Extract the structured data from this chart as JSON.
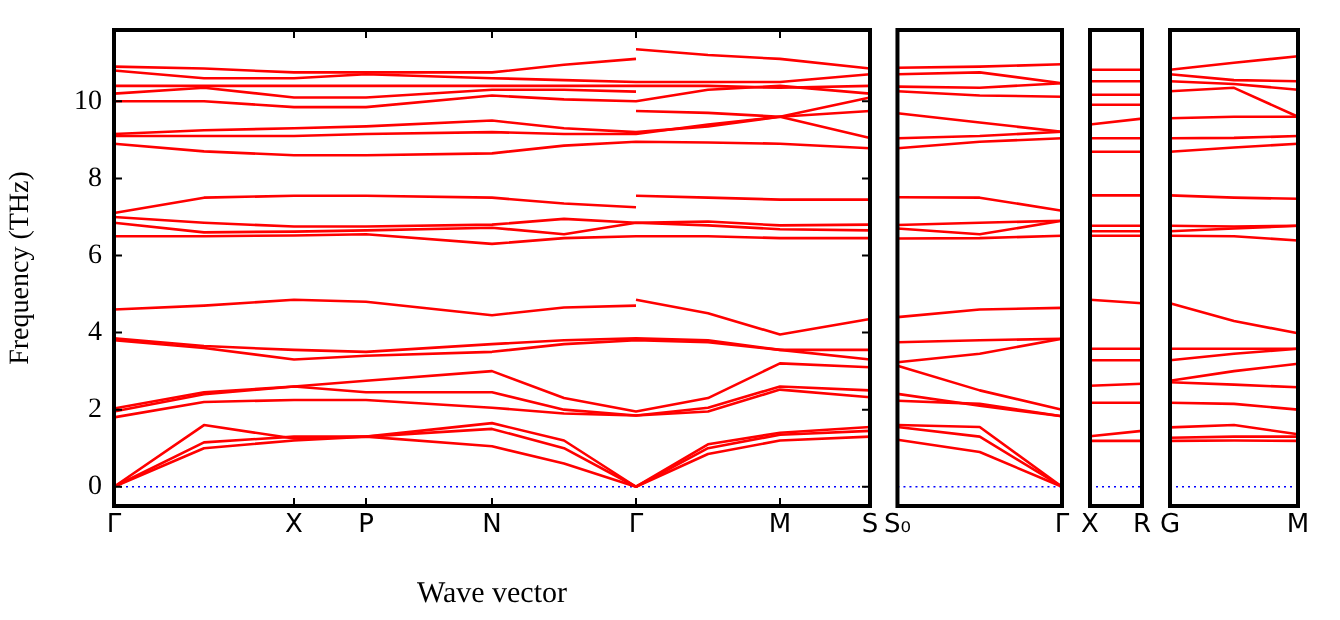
{
  "chart_data": [
    {
      "type": "line",
      "xlabel": "Wave vector",
      "ylabel": "Frequency (THz)",
      "marker": "none",
      "categories": [
        "Γ",
        null,
        null,
        null,
        null,
        null,
        null,
        null,
        null,
        null,
        "X",
        null,
        null,
        null,
        "P",
        null,
        null,
        null,
        null,
        null,
        null,
        "N",
        null,
        null,
        null,
        null,
        null,
        null,
        null,
        "Γ",
        null,
        null,
        null,
        null,
        null,
        null,
        null,
        "M",
        null,
        null,
        null,
        null,
        "S"
      ],
      "ylim": [
        -0.5,
        11.85
      ],
      "yticks": [
        0,
        2,
        4,
        6,
        8,
        10
      ],
      "ref_lines": [
        {
          "axis": "y",
          "value": 0,
          "color": "#0000ff",
          "line_style": "dotted"
        }
      ],
      "series": [
        {
          "color": "#ff0000",
          "values": [
            0,
            null,
            null,
            null,
            null,
            1.0,
            null,
            null,
            null,
            null,
            1.2,
            null,
            null,
            null,
            1.3,
            null,
            null,
            null,
            null,
            null,
            null,
            1.05,
            null,
            null,
            null,
            0.6,
            null,
            null,
            null,
            0,
            null,
            null,
            null,
            0.85,
            null,
            null,
            null,
            1.2,
            null,
            null,
            null,
            null,
            1.3
          ]
        },
        {
          "color": "#ff0000",
          "values": [
            0,
            null,
            null,
            null,
            null,
            1.15,
            null,
            null,
            null,
            null,
            1.3,
            null,
            null,
            null,
            1.3,
            null,
            null,
            null,
            null,
            null,
            null,
            1.5,
            null,
            null,
            null,
            1.0,
            null,
            null,
            null,
            0,
            null,
            null,
            null,
            1.0,
            null,
            null,
            null,
            1.35,
            null,
            null,
            null,
            null,
            1.45
          ]
        },
        {
          "color": "#ff0000",
          "values": [
            0,
            null,
            null,
            null,
            null,
            1.6,
            null,
            null,
            null,
            null,
            1.25,
            null,
            null,
            null,
            1.3,
            null,
            null,
            null,
            null,
            null,
            null,
            1.65,
            null,
            null,
            null,
            1.2,
            null,
            null,
            null,
            0,
            null,
            null,
            null,
            1.1,
            null,
            null,
            null,
            1.4,
            null,
            null,
            null,
            null,
            1.55
          ]
        },
        {
          "color": "#ff0000",
          "values": [
            1.8,
            null,
            null,
            null,
            null,
            2.2,
            null,
            null,
            null,
            null,
            2.25,
            null,
            null,
            null,
            2.25,
            null,
            null,
            null,
            null,
            null,
            null,
            2.05,
            null,
            null,
            null,
            1.9,
            null,
            null,
            null,
            1.85,
            null,
            null,
            null,
            1.95,
            null,
            null,
            null,
            2.52,
            null,
            null,
            null,
            null,
            2.32
          ]
        },
        {
          "color": "#ff0000",
          "values": [
            1.95,
            null,
            null,
            null,
            null,
            2.4,
            null,
            null,
            null,
            null,
            2.6,
            null,
            null,
            null,
            2.45,
            null,
            null,
            null,
            null,
            null,
            null,
            2.45,
            null,
            null,
            null,
            2.0,
            null,
            null,
            null,
            1.85,
            null,
            null,
            null,
            2.05,
            null,
            null,
            null,
            2.6,
            null,
            null,
            null,
            null,
            2.5
          ]
        },
        {
          "color": "#ff0000",
          "values": [
            2.03,
            null,
            null,
            null,
            null,
            2.45,
            null,
            null,
            null,
            null,
            2.6,
            null,
            null,
            null,
            2.75,
            null,
            null,
            null,
            null,
            null,
            null,
            3.0,
            null,
            null,
            null,
            2.3,
            null,
            null,
            null,
            1.95,
            null,
            null,
            null,
            2.3,
            null,
            null,
            null,
            3.2,
            null,
            null,
            null,
            null,
            3.1
          ]
        },
        {
          "color": "#ff0000",
          "values": [
            3.8,
            null,
            null,
            null,
            null,
            3.6,
            null,
            null,
            null,
            null,
            3.3,
            null,
            null,
            null,
            3.4,
            null,
            null,
            null,
            null,
            null,
            null,
            3.5,
            null,
            null,
            null,
            3.7,
            null,
            null,
            null,
            3.8,
            null,
            null,
            null,
            3.75,
            null,
            null,
            null,
            3.55,
            null,
            null,
            null,
            null,
            3.3
          ]
        },
        {
          "color": "#ff0000",
          "values": [
            3.85,
            null,
            null,
            null,
            null,
            3.65,
            null,
            null,
            null,
            null,
            3.55,
            null,
            null,
            null,
            3.5,
            null,
            null,
            null,
            null,
            null,
            null,
            3.7,
            null,
            null,
            null,
            3.8,
            null,
            null,
            null,
            3.85,
            null,
            null,
            null,
            3.8,
            null,
            null,
            null,
            3.55,
            null,
            null,
            null,
            null,
            3.55
          ]
        },
        {
          "color": "#ff0000",
          "values": [
            4.6,
            null,
            null,
            null,
            null,
            4.7,
            null,
            null,
            null,
            null,
            4.85,
            null,
            null,
            null,
            4.8,
            null,
            null,
            null,
            null,
            null,
            null,
            4.45,
            null,
            null,
            null,
            4.65,
            null,
            null,
            null,
            4.7,
            null,
            null,
            null,
            null,
            null,
            null,
            null,
            null,
            null,
            null,
            null,
            null,
            null
          ]
        },
        {
          "color": "#ff0000",
          "values": [
            null,
            null,
            null,
            null,
            null,
            null,
            null,
            null,
            null,
            null,
            null,
            null,
            null,
            null,
            null,
            null,
            null,
            null,
            null,
            null,
            null,
            null,
            null,
            null,
            null,
            null,
            null,
            null,
            null,
            4.85,
            null,
            null,
            null,
            4.5,
            null,
            null,
            null,
            3.95,
            null,
            null,
            null,
            null,
            4.35
          ]
        },
        {
          "color": "#ff0000",
          "values": [
            6.5,
            null,
            null,
            null,
            null,
            6.5,
            null,
            null,
            null,
            null,
            6.52,
            null,
            null,
            null,
            6.55,
            null,
            null,
            null,
            null,
            null,
            null,
            6.3,
            null,
            null,
            null,
            6.45,
            null,
            null,
            null,
            6.5,
            null,
            null,
            null,
            6.5,
            null,
            null,
            null,
            6.45,
            null,
            null,
            null,
            null,
            6.45
          ]
        },
        {
          "color": "#ff0000",
          "values": [
            6.85,
            null,
            null,
            null,
            null,
            6.6,
            null,
            null,
            null,
            null,
            6.62,
            null,
            null,
            null,
            6.65,
            null,
            null,
            null,
            null,
            null,
            null,
            6.72,
            null,
            null,
            null,
            6.55,
            null,
            null,
            null,
            6.85,
            null,
            null,
            null,
            6.78,
            null,
            null,
            null,
            6.68,
            null,
            null,
            null,
            null,
            6.65
          ]
        },
        {
          "color": "#ff0000",
          "values": [
            7.0,
            null,
            null,
            null,
            null,
            6.85,
            null,
            null,
            null,
            null,
            6.75,
            null,
            null,
            null,
            6.75,
            null,
            null,
            null,
            null,
            null,
            null,
            6.8,
            null,
            null,
            null,
            6.95,
            null,
            null,
            null,
            6.85,
            null,
            null,
            null,
            6.88,
            null,
            null,
            null,
            6.78,
            null,
            null,
            null,
            null,
            6.8
          ]
        },
        {
          "color": "#ff0000",
          "values": [
            7.1,
            null,
            null,
            null,
            null,
            7.5,
            null,
            null,
            null,
            null,
            7.55,
            null,
            null,
            null,
            7.55,
            null,
            null,
            null,
            null,
            null,
            null,
            7.5,
            null,
            null,
            null,
            7.35,
            null,
            null,
            null,
            7.25,
            null,
            null,
            null,
            null,
            null,
            null,
            null,
            null,
            null,
            null,
            null,
            null,
            null
          ]
        },
        {
          "color": "#ff0000",
          "values": [
            null,
            null,
            null,
            null,
            null,
            null,
            null,
            null,
            null,
            null,
            null,
            null,
            null,
            null,
            null,
            null,
            null,
            null,
            null,
            null,
            null,
            null,
            null,
            null,
            null,
            null,
            null,
            null,
            null,
            7.55,
            null,
            null,
            null,
            7.5,
            null,
            null,
            null,
            7.45,
            null,
            null,
            null,
            null,
            7.45
          ]
        },
        {
          "color": "#ff0000",
          "values": [
            8.9,
            null,
            null,
            null,
            null,
            8.7,
            null,
            null,
            null,
            null,
            8.6,
            null,
            null,
            null,
            8.6,
            null,
            null,
            null,
            null,
            null,
            null,
            8.65,
            null,
            null,
            null,
            8.85,
            null,
            null,
            null,
            8.95,
            null,
            null,
            null,
            8.93,
            null,
            null,
            null,
            8.9,
            null,
            null,
            null,
            null,
            8.78
          ]
        },
        {
          "color": "#ff0000",
          "values": [
            9.1,
            null,
            null,
            null,
            null,
            9.1,
            null,
            null,
            null,
            null,
            9.1,
            null,
            null,
            null,
            9.15,
            null,
            null,
            null,
            null,
            null,
            null,
            9.2,
            null,
            null,
            null,
            9.15,
            null,
            null,
            null,
            9.15,
            null,
            null,
            null,
            9.4,
            null,
            null,
            null,
            9.6,
            null,
            null,
            null,
            null,
            9.05
          ]
        },
        {
          "color": "#ff0000",
          "values": [
            9.15,
            null,
            null,
            null,
            null,
            9.25,
            null,
            null,
            null,
            null,
            9.3,
            null,
            null,
            null,
            9.35,
            null,
            null,
            null,
            null,
            null,
            null,
            9.5,
            null,
            null,
            null,
            9.3,
            null,
            null,
            null,
            9.2,
            null,
            null,
            null,
            9.35,
            null,
            null,
            null,
            9.6,
            null,
            null,
            null,
            null,
            9.75
          ]
        },
        {
          "color": "#ff0000",
          "values": [
            10.0,
            null,
            null,
            null,
            null,
            10.0,
            null,
            null,
            null,
            null,
            9.85,
            null,
            null,
            null,
            9.85,
            null,
            null,
            null,
            null,
            null,
            null,
            10.15,
            null,
            null,
            null,
            10.05,
            null,
            null,
            null,
            10.0,
            null,
            null,
            null,
            10.3,
            null,
            null,
            null,
            10.4,
            null,
            null,
            null,
            null,
            10.2
          ]
        },
        {
          "color": "#ff0000",
          "values": [
            null,
            null,
            null,
            null,
            null,
            null,
            null,
            null,
            null,
            null,
            null,
            null,
            null,
            null,
            null,
            null,
            null,
            null,
            null,
            null,
            null,
            null,
            null,
            null,
            null,
            null,
            null,
            null,
            null,
            9.75,
            null,
            null,
            null,
            9.7,
            null,
            null,
            null,
            9.6,
            null,
            null,
            null,
            null,
            10.1
          ]
        },
        {
          "color": "#ff0000",
          "values": [
            10.2,
            null,
            null,
            null,
            null,
            10.35,
            null,
            null,
            null,
            null,
            10.1,
            null,
            null,
            null,
            10.1,
            null,
            null,
            null,
            null,
            null,
            null,
            10.3,
            null,
            null,
            null,
            10.3,
            null,
            null,
            null,
            10.25,
            null,
            null,
            null,
            null,
            null,
            null,
            null,
            null,
            null,
            null,
            null,
            null,
            null
          ]
        },
        {
          "color": "#ff0000",
          "values": [
            10.4,
            null,
            null,
            null,
            null,
            10.4,
            null,
            null,
            null,
            null,
            10.4,
            null,
            null,
            null,
            10.4,
            null,
            null,
            null,
            null,
            null,
            null,
            10.4,
            null,
            null,
            null,
            10.4,
            null,
            null,
            null,
            10.4,
            null,
            null,
            null,
            10.4,
            null,
            null,
            null,
            10.35,
            null,
            null,
            null,
            null,
            10.4
          ]
        },
        {
          "color": "#ff0000",
          "values": [
            10.8,
            null,
            null,
            null,
            null,
            10.6,
            null,
            null,
            null,
            null,
            10.6,
            null,
            null,
            null,
            10.7,
            null,
            null,
            null,
            null,
            null,
            null,
            10.6,
            null,
            null,
            null,
            10.55,
            null,
            null,
            null,
            10.5,
            null,
            null,
            null,
            10.5,
            null,
            null,
            null,
            10.5,
            null,
            null,
            null,
            null,
            10.7
          ]
        },
        {
          "color": "#ff0000",
          "values": [
            10.9,
            null,
            null,
            null,
            null,
            10.85,
            null,
            null,
            null,
            null,
            10.75,
            null,
            null,
            null,
            10.75,
            null,
            null,
            null,
            null,
            null,
            null,
            10.75,
            null,
            null,
            null,
            10.95,
            null,
            null,
            null,
            11.1,
            null,
            null,
            null,
            null,
            null,
            null,
            null,
            null,
            null,
            null,
            null,
            null,
            null
          ]
        },
        {
          "color": "#ff0000",
          "values": [
            null,
            null,
            null,
            null,
            null,
            null,
            null,
            null,
            null,
            null,
            null,
            null,
            null,
            null,
            null,
            null,
            null,
            null,
            null,
            null,
            null,
            null,
            null,
            null,
            null,
            null,
            null,
            null,
            null,
            11.35,
            null,
            null,
            null,
            11.2,
            null,
            null,
            null,
            11.1,
            null,
            null,
            null,
            null,
            10.85
          ]
        }
      ]
    },
    {
      "type": "line",
      "marker": "none",
      "tick_labels": "x",
      "categories": [
        "S₀",
        null,
        "Γ"
      ],
      "ylim": [
        -0.5,
        11.85
      ],
      "yticks": [
        0,
        2,
        4,
        6,
        8,
        10
      ],
      "ref_lines": [
        {
          "axis": "y",
          "value": 0,
          "color": "#0000ff",
          "line_style": "dotted"
        }
      ],
      "series": [
        {
          "color": "#ff0000",
          "values": [
            1.22,
            0.9,
            0
          ]
        },
        {
          "color": "#ff0000",
          "values": [
            1.55,
            1.3,
            0
          ]
        },
        {
          "color": "#ff0000",
          "values": [
            1.6,
            1.55,
            0
          ]
        },
        {
          "color": "#ff0000",
          "values": [
            2.23,
            2.15,
            1.83
          ]
        },
        {
          "color": "#ff0000",
          "values": [
            2.41,
            2.1,
            1.83
          ]
        },
        {
          "color": "#ff0000",
          "values": [
            3.14,
            2.5,
            2.0
          ]
        },
        {
          "color": "#ff0000",
          "values": [
            3.23,
            3.45,
            3.84
          ]
        },
        {
          "color": "#ff0000",
          "values": [
            3.75,
            3.8,
            3.84
          ]
        },
        {
          "color": "#ff0000",
          "values": [
            4.4,
            4.6,
            4.64
          ]
        },
        {
          "color": "#ff0000",
          "values": [
            6.44,
            6.45,
            6.51
          ]
        },
        {
          "color": "#ff0000",
          "values": [
            6.7,
            6.55,
            6.9
          ]
        },
        {
          "color": "#ff0000",
          "values": [
            6.79,
            6.85,
            6.9
          ]
        },
        {
          "color": "#ff0000",
          "values": [
            7.51,
            7.5,
            7.16
          ]
        },
        {
          "color": "#ff0000",
          "values": [
            8.78,
            8.95,
            9.04
          ]
        },
        {
          "color": "#ff0000",
          "values": [
            9.04,
            9.1,
            9.21
          ]
        },
        {
          "color": "#ff0000",
          "values": [
            9.69,
            9.45,
            9.21
          ]
        },
        {
          "color": "#ff0000",
          "values": [
            10.26,
            10.15,
            10.12
          ]
        },
        {
          "color": "#ff0000",
          "values": [
            10.38,
            10.35,
            10.47
          ]
        },
        {
          "color": "#ff0000",
          "values": [
            10.7,
            10.75,
            10.47
          ]
        },
        {
          "color": "#ff0000",
          "values": [
            10.87,
            10.9,
            10.96
          ]
        }
      ]
    },
    {
      "type": "line",
      "marker": "none",
      "tick_labels": "x",
      "categories": [
        "X",
        "R"
      ],
      "ylim": [
        -0.5,
        11.85
      ],
      "yticks": [
        0,
        2,
        4,
        6,
        8,
        10
      ],
      "ref_lines": [
        {
          "axis": "y",
          "value": 0,
          "color": "#0000ff",
          "line_style": "dotted"
        }
      ],
      "series": [
        {
          "color": "#ff0000",
          "values": [
            1.19,
            1.19
          ]
        },
        {
          "color": "#ff0000",
          "values": [
            1.31,
            1.45
          ]
        },
        {
          "color": "#ff0000",
          "values": [
            2.18,
            2.18
          ]
        },
        {
          "color": "#ff0000",
          "values": [
            2.62,
            2.67
          ]
        },
        {
          "color": "#ff0000",
          "values": [
            3.28,
            3.28
          ]
        },
        {
          "color": "#ff0000",
          "values": [
            3.58,
            3.58
          ]
        },
        {
          "color": "#ff0000",
          "values": [
            4.85,
            4.76
          ]
        },
        {
          "color": "#ff0000",
          "values": [
            6.51,
            6.51
          ]
        },
        {
          "color": "#ff0000",
          "values": [
            6.63,
            6.63
          ]
        },
        {
          "color": "#ff0000",
          "values": [
            6.77,
            6.77
          ]
        },
        {
          "color": "#ff0000",
          "values": [
            7.56,
            7.56
          ]
        },
        {
          "color": "#ff0000",
          "values": [
            8.69,
            8.69
          ]
        },
        {
          "color": "#ff0000",
          "values": [
            9.04,
            9.04
          ]
        },
        {
          "color": "#ff0000",
          "values": [
            9.4,
            9.55
          ]
        },
        {
          "color": "#ff0000",
          "values": [
            9.91,
            9.91
          ]
        },
        {
          "color": "#ff0000",
          "values": [
            10.17,
            10.17
          ]
        },
        {
          "color": "#ff0000",
          "values": [
            10.52,
            10.52
          ]
        },
        {
          "color": "#ff0000",
          "values": [
            10.82,
            10.82
          ]
        }
      ]
    },
    {
      "type": "line",
      "marker": "none",
      "tick_labels": "x",
      "categories": [
        "G",
        null,
        "M"
      ],
      "ylim": [
        -0.5,
        11.85
      ],
      "yticks": [
        0,
        2,
        4,
        6,
        8,
        10
      ],
      "ref_lines": [
        {
          "axis": "y",
          "value": 0,
          "color": "#0000ff",
          "line_style": "dotted"
        }
      ],
      "series": [
        {
          "color": "#ff0000",
          "values": [
            1.19,
            1.2,
            1.19
          ]
        },
        {
          "color": "#ff0000",
          "values": [
            1.27,
            1.3,
            1.3
          ]
        },
        {
          "color": "#ff0000",
          "values": [
            1.54,
            1.6,
            1.36
          ]
        },
        {
          "color": "#ff0000",
          "values": [
            2.18,
            2.15,
            2.0
          ]
        },
        {
          "color": "#ff0000",
          "values": [
            2.71,
            2.65,
            2.58
          ]
        },
        {
          "color": "#ff0000",
          "values": [
            2.75,
            3.0,
            3.19
          ]
        },
        {
          "color": "#ff0000",
          "values": [
            3.28,
            3.45,
            3.58
          ]
        },
        {
          "color": "#ff0000",
          "values": [
            3.58,
            3.58,
            3.58
          ]
        },
        {
          "color": "#ff0000",
          "values": [
            4.76,
            4.3,
            3.98
          ]
        },
        {
          "color": "#ff0000",
          "values": [
            6.51,
            6.5,
            6.39
          ]
        },
        {
          "color": "#ff0000",
          "values": [
            6.63,
            6.7,
            6.77
          ]
        },
        {
          "color": "#ff0000",
          "values": [
            6.77,
            6.75,
            6.77
          ]
        },
        {
          "color": "#ff0000",
          "values": [
            7.56,
            7.5,
            7.47
          ]
        },
        {
          "color": "#ff0000",
          "values": [
            8.69,
            8.8,
            8.9
          ]
        },
        {
          "color": "#ff0000",
          "values": [
            9.04,
            9.05,
            9.1
          ]
        },
        {
          "color": "#ff0000",
          "values": [
            9.56,
            9.6,
            9.6
          ]
        },
        {
          "color": "#ff0000",
          "values": [
            10.26,
            10.35,
            9.6
          ]
        },
        {
          "color": "#ff0000",
          "values": [
            10.52,
            10.45,
            10.3
          ]
        },
        {
          "color": "#ff0000",
          "values": [
            10.7,
            10.55,
            10.52
          ]
        },
        {
          "color": "#ff0000",
          "values": [
            10.82,
            11.0,
            11.17
          ]
        }
      ]
    }
  ]
}
